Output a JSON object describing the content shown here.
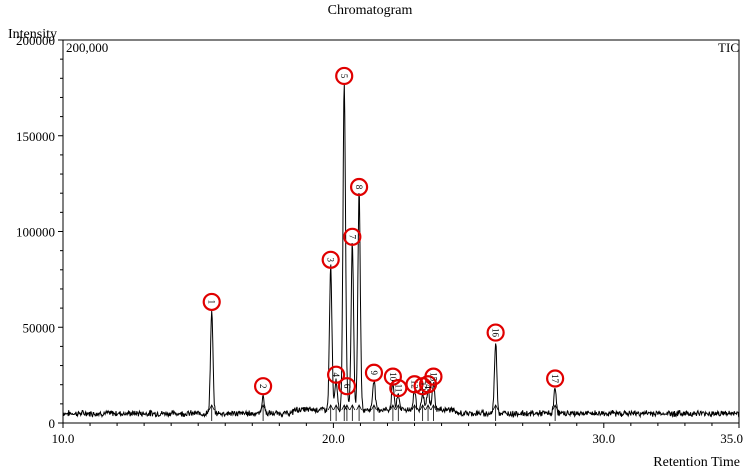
{
  "chart_data": {
    "type": "line",
    "title": "Chromatogram",
    "xlabel": "Retention Time",
    "ylabel": "Intensity",
    "inner_scale_label": "200,000",
    "trace_label": "TIC",
    "xlim": [
      10.0,
      35.0
    ],
    "ylim": [
      0,
      200000
    ],
    "x_ticks": [
      10.0,
      20.0,
      30.0,
      35.0
    ],
    "x_tick_labels": [
      "10.0",
      "20.0",
      "30.0",
      "35.0"
    ],
    "y_ticks": [
      0,
      50000,
      100000,
      150000,
      200000
    ],
    "y_tick_labels": [
      "0",
      "50000",
      "100000",
      "150000",
      "200000"
    ],
    "grid": false,
    "legend": "none",
    "baseline": 5000,
    "peaks": [
      {
        "label": "1",
        "x": 15.5,
        "y": 58000
      },
      {
        "label": "2",
        "x": 17.4,
        "y": 14000
      },
      {
        "label": "3",
        "x": 19.9,
        "y": 80000
      },
      {
        "label": "4",
        "x": 20.1,
        "y": 20000
      },
      {
        "label": "5",
        "x": 20.4,
        "y": 176000
      },
      {
        "label": "6",
        "x": 20.5,
        "y": 14000
      },
      {
        "label": "7",
        "x": 20.7,
        "y": 92000
      },
      {
        "label": "8",
        "x": 20.95,
        "y": 118000
      },
      {
        "label": "9",
        "x": 21.5,
        "y": 21000
      },
      {
        "label": "10",
        "x": 22.2,
        "y": 19000
      },
      {
        "label": "11",
        "x": 22.4,
        "y": 13000
      },
      {
        "label": "12",
        "x": 23.0,
        "y": 15000
      },
      {
        "label": "13",
        "x": 23.3,
        "y": 14000
      },
      {
        "label": "14",
        "x": 23.5,
        "y": 15000
      },
      {
        "label": "15",
        "x": 23.7,
        "y": 19000
      },
      {
        "label": "16",
        "x": 26.0,
        "y": 42000
      },
      {
        "label": "17",
        "x": 28.2,
        "y": 18000
      }
    ],
    "colors": {
      "trace": "#000000",
      "marker": "#e00000"
    }
  }
}
